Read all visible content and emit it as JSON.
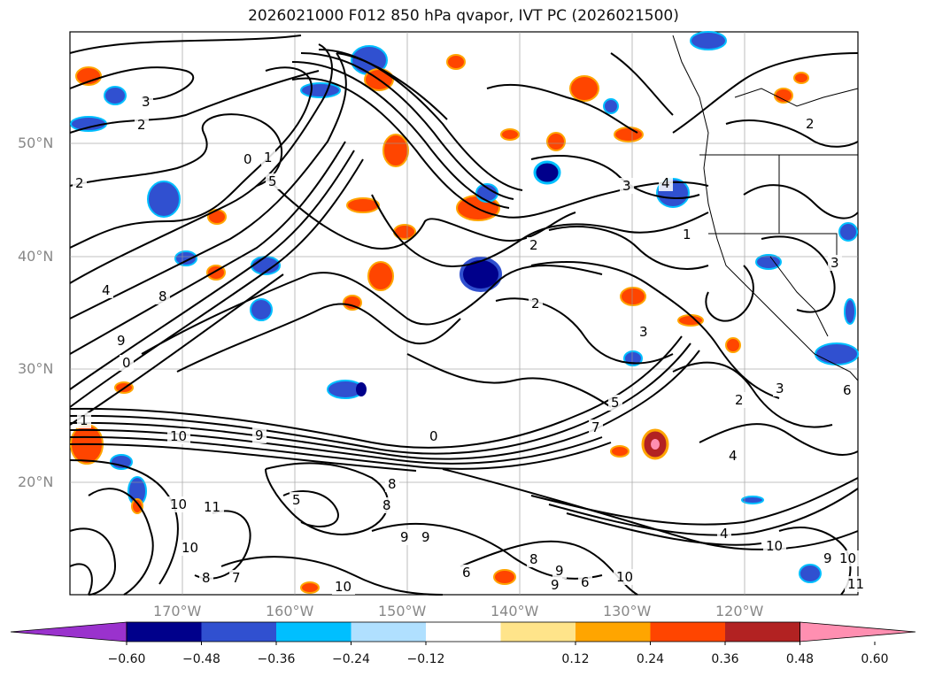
{
  "title": "2026021000 F012 850 hPa qvapor, IVT PC (2026021500)",
  "lat_labels": [
    "50°N",
    "40°N",
    "30°N",
    "20°N"
  ],
  "lon_labels": [
    "170°W",
    "160°W",
    "150°W",
    "140°W",
    "130°W",
    "120°W"
  ],
  "contour_labels": [
    "3",
    "2",
    "2",
    "0",
    "1",
    "5",
    "4",
    "8",
    "9",
    "0",
    "1",
    "10",
    "9",
    "0",
    "10",
    "11",
    "10",
    "8",
    "7",
    "5",
    "9",
    "8",
    "8",
    "6",
    "8",
    "9",
    "9",
    "9",
    "6",
    "10",
    "10",
    "3",
    "4",
    "1",
    "2",
    "3",
    "5",
    "7",
    "2",
    "2",
    "4",
    "4",
    "10",
    "11",
    "9",
    "10",
    "3",
    "3",
    "6",
    "2"
  ],
  "colorbar": {
    "ticks": [
      "−0.60",
      "−0.48",
      "−0.36",
      "−0.24",
      "−0.12",
      "0.12",
      "0.24",
      "0.36",
      "0.48",
      "0.60"
    ],
    "colors": [
      "#9a32cd",
      "#00008b",
      "#3050d0",
      "#00bfff",
      "#b0e0ff",
      "#ffffff",
      "#ffe48a",
      "#ffa500",
      "#ff4500",
      "#b22222",
      "#ff8fb1"
    ]
  }
}
